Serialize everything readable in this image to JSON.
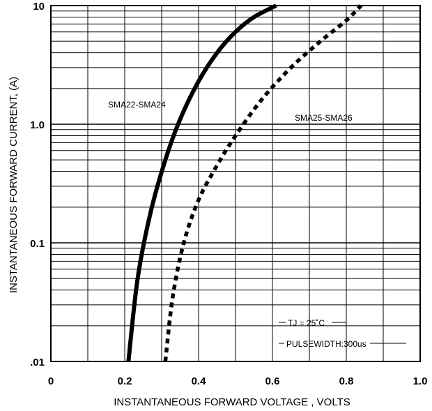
{
  "chart_data": {
    "type": "line",
    "xlabel": "INSTANTANEOUS FORWARD VOLTAGE , VOLTS",
    "ylabel": "INSTANTANEOUS  FORWARD CURRENT, (A)",
    "xlim": [
      0,
      1.0
    ],
    "ylim": [
      0.01,
      10
    ],
    "yscale": "log",
    "grid": true,
    "x_ticks": [
      "0",
      "0.2",
      "0.4",
      "0.6",
      "0.8",
      "1.0"
    ],
    "y_ticks": [
      ".01",
      "0.1",
      "1.0",
      "10"
    ],
    "series": [
      {
        "name": "SMA22-SMA24",
        "style": "solid",
        "x": [
          0.21,
          0.235,
          0.27,
          0.31,
          0.35,
          0.4,
          0.45,
          0.5,
          0.55,
          0.61
        ],
        "y": [
          0.01,
          0.05,
          0.18,
          0.5,
          1.1,
          2.3,
          4.0,
          6.0,
          8.0,
          10
        ]
      },
      {
        "name": "SMA25-SMA26",
        "style": "dotted",
        "x": [
          0.31,
          0.33,
          0.36,
          0.4,
          0.45,
          0.5,
          0.57,
          0.65,
          0.73,
          0.8,
          0.84
        ],
        "y": [
          0.01,
          0.035,
          0.1,
          0.23,
          0.45,
          0.8,
          1.6,
          3.0,
          5.0,
          7.5,
          10
        ]
      }
    ],
    "annotations": [
      {
        "text": "TJ = 25˚C"
      },
      {
        "text": "PULSEWIDTH:300us"
      }
    ]
  }
}
